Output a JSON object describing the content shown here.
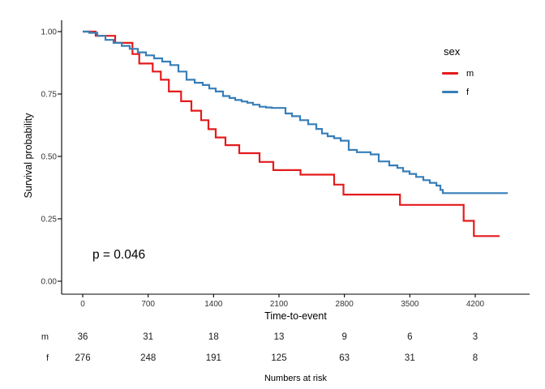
{
  "chart_data": {
    "type": "line",
    "subtype": "kaplan-meier-step-curves",
    "title": "",
    "xlabel": "Time-to-event",
    "ylabel": "Survival probability",
    "xlim": [
      0,
      4550
    ],
    "ylim": [
      0,
      1
    ],
    "grid": "off",
    "x_tick_values": [
      0,
      700,
      1400,
      2100,
      2800,
      3500,
      4200
    ],
    "x_tick_labels": [
      "0",
      "700",
      "1400",
      "2100",
      "2800",
      "3500",
      "4200"
    ],
    "y_tick_values": [
      0,
      0.25,
      0.5,
      0.75,
      1.0
    ],
    "y_tick_labels": [
      "0.00",
      "0.25",
      "0.50",
      "0.75",
      "1.00"
    ],
    "legend": {
      "title": "sex",
      "position": "right",
      "items": [
        {
          "label": "m",
          "color": "#E41A1C"
        },
        {
          "label": "f",
          "color": "#377EB8"
        }
      ]
    },
    "annotations": [
      {
        "text": "p = 0.046"
      }
    ],
    "series": [
      {
        "name": "m",
        "color": "#E41A1C",
        "end_t": 4460,
        "points": [
          [
            0,
            1.0
          ],
          [
            139,
            0.983
          ],
          [
            347,
            0.955
          ],
          [
            532,
            0.91
          ],
          [
            605,
            0.872
          ],
          [
            749,
            0.84
          ],
          [
            836,
            0.807
          ],
          [
            922,
            0.76
          ],
          [
            1053,
            0.721
          ],
          [
            1163,
            0.683
          ],
          [
            1267,
            0.645
          ],
          [
            1345,
            0.609
          ],
          [
            1423,
            0.576
          ],
          [
            1527,
            0.545
          ],
          [
            1675,
            0.513
          ],
          [
            1892,
            0.478
          ],
          [
            2039,
            0.445
          ],
          [
            2330,
            0.427
          ],
          [
            2690,
            0.387
          ],
          [
            2790,
            0.347
          ],
          [
            3395,
            0.306
          ],
          [
            4076,
            0.242
          ],
          [
            4185,
            0.181
          ]
        ]
      },
      {
        "name": "f",
        "color": "#377EB8",
        "end_t": 4548,
        "points": [
          [
            0,
            1.0
          ],
          [
            69,
            0.995
          ],
          [
            156,
            0.983
          ],
          [
            243,
            0.967
          ],
          [
            330,
            0.955
          ],
          [
            417,
            0.943
          ],
          [
            503,
            0.931
          ],
          [
            590,
            0.917
          ],
          [
            677,
            0.905
          ],
          [
            764,
            0.893
          ],
          [
            850,
            0.88
          ],
          [
            937,
            0.866
          ],
          [
            1024,
            0.84
          ],
          [
            1111,
            0.807
          ],
          [
            1198,
            0.795
          ],
          [
            1284,
            0.786
          ],
          [
            1354,
            0.772
          ],
          [
            1423,
            0.76
          ],
          [
            1501,
            0.742
          ],
          [
            1571,
            0.734
          ],
          [
            1631,
            0.726
          ],
          [
            1701,
            0.72
          ],
          [
            1762,
            0.715
          ],
          [
            1822,
            0.707
          ],
          [
            1892,
            0.699
          ],
          [
            1961,
            0.696
          ],
          [
            2022,
            0.694
          ],
          [
            2169,
            0.672
          ],
          [
            2239,
            0.661
          ],
          [
            2326,
            0.645
          ],
          [
            2412,
            0.629
          ],
          [
            2499,
            0.61
          ],
          [
            2560,
            0.592
          ],
          [
            2621,
            0.581
          ],
          [
            2690,
            0.573
          ],
          [
            2760,
            0.563
          ],
          [
            2846,
            0.526
          ],
          [
            2933,
            0.517
          ],
          [
            3081,
            0.508
          ],
          [
            3167,
            0.48
          ],
          [
            3280,
            0.464
          ],
          [
            3367,
            0.454
          ],
          [
            3428,
            0.44
          ],
          [
            3497,
            0.43
          ],
          [
            3567,
            0.418
          ],
          [
            3645,
            0.405
          ],
          [
            3714,
            0.394
          ],
          [
            3784,
            0.383
          ],
          [
            3827,
            0.366
          ],
          [
            3853,
            0.353
          ]
        ]
      }
    ],
    "risk_table": {
      "title": "Numbers at risk",
      "time_points": [
        0,
        700,
        1400,
        2100,
        2800,
        3500,
        4200
      ],
      "rows": [
        {
          "label": "m",
          "values": [
            "36",
            "31",
            "18",
            "13",
            "9",
            "6",
            "3"
          ]
        },
        {
          "label": "f",
          "values": [
            "276",
            "248",
            "191",
            "125",
            "63",
            "31",
            "8"
          ]
        }
      ]
    }
  }
}
